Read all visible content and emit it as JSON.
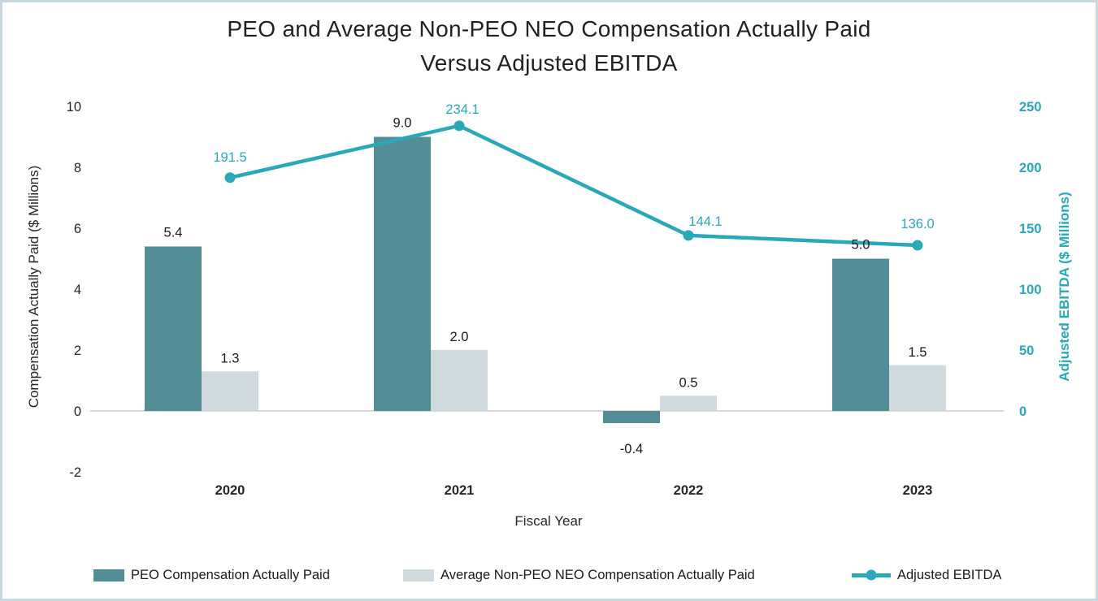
{
  "title": {
    "line1": "PEO and Average Non-PEO NEO Compensation Actually Paid",
    "line2": "Versus Adjusted EBITDA"
  },
  "chart_data": {
    "type": "combo-bar-line",
    "categories": [
      "2020",
      "2021",
      "2022",
      "2023"
    ],
    "series": [
      {
        "name": "PEO Compensation Actually Paid",
        "type": "bar",
        "axis": "left",
        "color": "#538E96",
        "values": [
          5.4,
          9.0,
          -0.4,
          5.0
        ]
      },
      {
        "name": "Average Non-PEO NEO Compensation Actually Paid",
        "type": "bar",
        "axis": "left",
        "color": "#CEDADE",
        "values": [
          1.3,
          2.0,
          0.5,
          1.5
        ]
      },
      {
        "name": "Adjusted EBITDA",
        "type": "line",
        "axis": "right",
        "color": "#29A8BA",
        "values": [
          191.5,
          234.1,
          144.1,
          136.0
        ]
      }
    ],
    "data_labels": {
      "peo": [
        "5.4",
        "9.0",
        "-0.4",
        "5.0"
      ],
      "non_peo": [
        "1.3",
        "2.0",
        "0.5",
        "1.5"
      ],
      "ebitda": [
        "191.5",
        "234.1",
        "144.1",
        "136.0"
      ]
    },
    "left_axis": {
      "title": "Compensation Actually Paid ($ Millions)",
      "ticks": [
        "10",
        "8",
        "6",
        "4",
        "2",
        "0",
        "-2"
      ],
      "min": -2,
      "max": 10,
      "color": "#262626"
    },
    "right_axis": {
      "title": "Adjusted EBITDA ($ Millions)",
      "ticks": [
        "250",
        "200",
        "150",
        "100",
        "50",
        "0"
      ],
      "min": 0,
      "max": 250,
      "color": "#29A8BA"
    },
    "xlabel": "Fiscal Year",
    "legend_position": "bottom",
    "grid": "zero-baseline-only"
  },
  "colors": {
    "frame_border": "#C8D8E0",
    "background": "#FFFFFF",
    "grid_line": "#D9D9D9",
    "text": "#262626",
    "title_text": "#212121"
  }
}
